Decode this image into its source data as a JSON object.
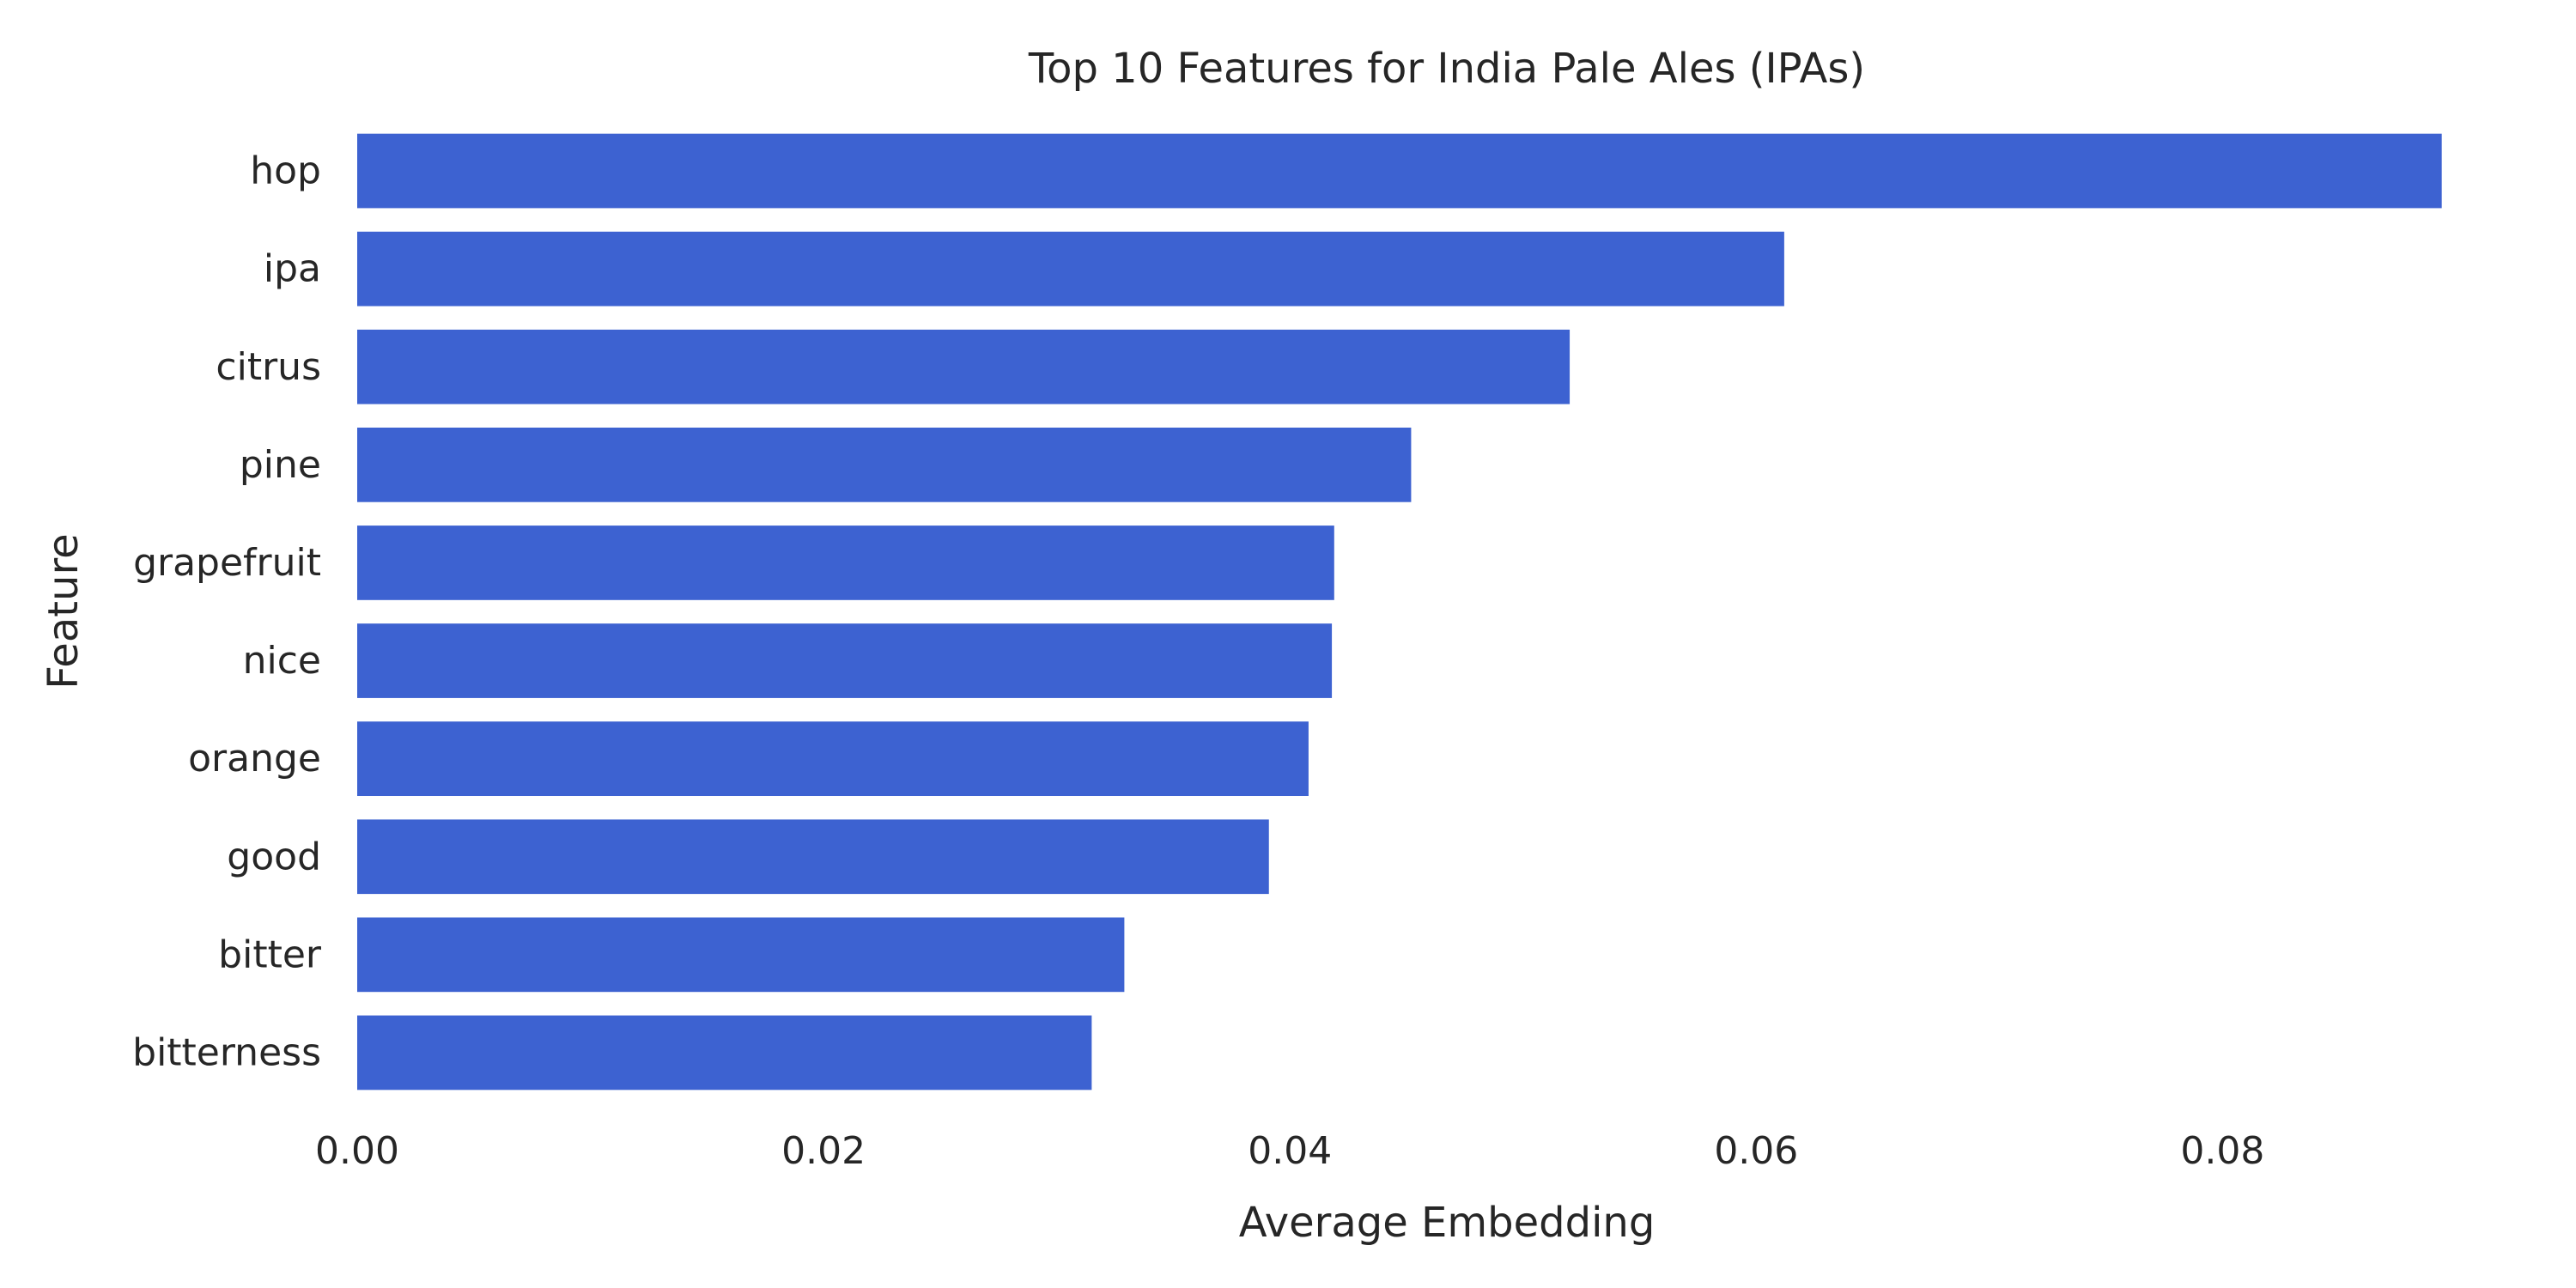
{
  "chart_data": {
    "type": "bar",
    "orientation": "horizontal",
    "title": "Top 10 Features for India Pale Ales (IPAs)",
    "xlabel": "Average Embedding",
    "ylabel": "Feature",
    "categories": [
      "hop",
      "ipa",
      "citrus",
      "pine",
      "grapefruit",
      "nice",
      "orange",
      "good",
      "bitter",
      "bitterness"
    ],
    "values": [
      0.0894,
      0.0612,
      0.052,
      0.0452,
      0.0419,
      0.0418,
      0.0408,
      0.0391,
      0.0329,
      0.0315
    ],
    "xlim": [
      0,
      0.0935
    ],
    "xticks": [
      0.0,
      0.02,
      0.04,
      0.06,
      0.08
    ],
    "xtick_labels": [
      "0.00",
      "0.02",
      "0.04",
      "0.06",
      "0.08"
    ],
    "bar_color": "#3d62d1",
    "grid": false,
    "legend": "none"
  }
}
